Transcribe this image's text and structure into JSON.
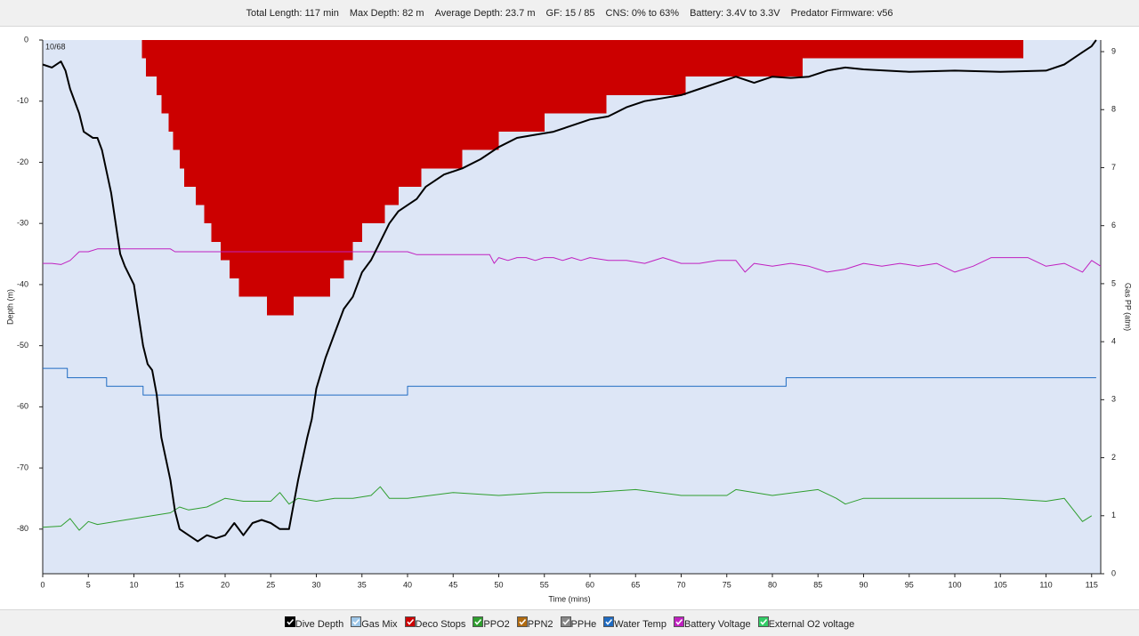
{
  "header": {
    "stats": [
      "Total Length: 117 min",
      "Max Depth: 82 m",
      "Average Depth: 23.7 m",
      "GF: 15 / 85",
      "CNS: 0% to 63%",
      "Battery: 3.4V to 3.3V",
      "Predator Firmware: v56"
    ]
  },
  "chart_data": {
    "type": "line",
    "annotation": "10/68",
    "x_label": "Time (mins)",
    "y_label": "Depth (m)",
    "y2_label": "Gas PP (atm)",
    "xlim": [
      0,
      116
    ],
    "ylim": [
      -87.3,
      0
    ],
    "y2lim": [
      0,
      9.2
    ],
    "xticks": [
      0,
      5,
      10,
      15,
      20,
      25,
      30,
      35,
      40,
      45,
      50,
      55,
      60,
      65,
      70,
      75,
      80,
      85,
      90,
      95,
      100,
      105,
      110,
      115
    ],
    "yticks": [
      0,
      -10,
      -20,
      -30,
      -40,
      -50,
      -60,
      -70,
      -80
    ],
    "y2ticks": [
      0,
      1,
      2,
      3,
      4,
      5,
      6,
      7,
      8,
      9
    ],
    "plot_background": "#dde6f6",
    "series": [
      {
        "name": "Deco Stops",
        "color": "#cc0000",
        "mark": "step-area",
        "x": [
          10.9,
          11.3,
          12.5,
          13,
          13.8,
          14.3,
          15,
          15.5,
          16.8,
          17.7,
          18.5,
          19.5,
          20.5,
          21.5,
          24.6,
          27.5,
          31.5,
          33,
          34,
          35,
          37.5,
          39,
          41.5,
          46,
          50,
          55,
          61.8,
          70.5,
          83.3,
          107.5
        ],
        "values": [
          -3,
          -6,
          -9,
          -12,
          -15,
          -18,
          -21,
          -24,
          -27,
          -30,
          -33,
          -36,
          -39,
          -42,
          -45,
          -42,
          -39,
          -36,
          -33,
          -30,
          -27,
          -24,
          -21,
          -18,
          -15,
          -12,
          -9,
          -6,
          -3,
          0
        ]
      },
      {
        "name": "Water Temp",
        "color": "#1f6bc2",
        "axis": "y2",
        "mark": "line",
        "x": [
          0,
          2.7,
          2.7,
          7,
          7,
          11,
          11,
          40,
          40,
          81.5,
          81.5,
          115.5
        ],
        "values": [
          3.54,
          3.54,
          3.38,
          3.38,
          3.23,
          3.23,
          3.08,
          3.08,
          3.23,
          3.23,
          3.38,
          3.38
        ]
      },
      {
        "name": "Battery Voltage",
        "color": "#c020c0",
        "axis": "y2",
        "mark": "line",
        "x": [
          0,
          1,
          2,
          3,
          4,
          5,
          6,
          7,
          10,
          14,
          14.5,
          20,
          30,
          39,
          40,
          41,
          42,
          49,
          49.5,
          50,
          51,
          52,
          53,
          54,
          55,
          56,
          57,
          58,
          59,
          60,
          62,
          64,
          66,
          68,
          70,
          72,
          74,
          76,
          77,
          78,
          80,
          82,
          84,
          86,
          88,
          90,
          92,
          94,
          96,
          98,
          100,
          102,
          104,
          106,
          107,
          108,
          110,
          112,
          114,
          115,
          116
        ],
        "values": [
          5.35,
          5.35,
          5.33,
          5.4,
          5.55,
          5.55,
          5.6,
          5.6,
          5.6,
          5.6,
          5.55,
          5.55,
          5.55,
          5.55,
          5.55,
          5.5,
          5.5,
          5.5,
          5.35,
          5.45,
          5.4,
          5.45,
          5.45,
          5.4,
          5.45,
          5.45,
          5.4,
          5.45,
          5.4,
          5.45,
          5.4,
          5.4,
          5.35,
          5.45,
          5.35,
          5.35,
          5.4,
          5.4,
          5.2,
          5.35,
          5.3,
          5.35,
          5.3,
          5.2,
          5.25,
          5.35,
          5.3,
          5.35,
          5.3,
          5.35,
          5.2,
          5.3,
          5.45,
          5.45,
          5.45,
          5.45,
          5.3,
          5.35,
          5.2,
          5.4,
          5.3
        ]
      },
      {
        "name": "PPO2",
        "color": "#2e9e2e",
        "axis": "y2",
        "mark": "line",
        "x": [
          0,
          2,
          3,
          4,
          5,
          6,
          8,
          10,
          12,
          14,
          15,
          16,
          18,
          20,
          22,
          25,
          26,
          27,
          28,
          30,
          32,
          34,
          36,
          37,
          38,
          40,
          45,
          50,
          55,
          60,
          65,
          70,
          75,
          76,
          80,
          85,
          87,
          88,
          90,
          95,
          100,
          105,
          110,
          112,
          113,
          114,
          115
        ],
        "values": [
          0.8,
          0.82,
          0.95,
          0.75,
          0.9,
          0.85,
          0.9,
          0.95,
          1.0,
          1.05,
          1.15,
          1.1,
          1.15,
          1.3,
          1.25,
          1.25,
          1.4,
          1.2,
          1.3,
          1.25,
          1.3,
          1.3,
          1.35,
          1.5,
          1.3,
          1.3,
          1.4,
          1.35,
          1.4,
          1.4,
          1.45,
          1.35,
          1.35,
          1.45,
          1.35,
          1.45,
          1.3,
          1.2,
          1.3,
          1.3,
          1.3,
          1.3,
          1.25,
          1.3,
          1.1,
          0.9,
          1.0
        ]
      },
      {
        "name": "Dive Depth",
        "color": "#000000",
        "mark": "line",
        "x": [
          0,
          1,
          2,
          2.5,
          3,
          4,
          4.5,
          5.5,
          6,
          6.5,
          7.5,
          8,
          8.5,
          9,
          10,
          10.5,
          11,
          11.5,
          12,
          12.5,
          13,
          14,
          14.5,
          15,
          16,
          17,
          18,
          19,
          20,
          21,
          22,
          23,
          24,
          25,
          26,
          27,
          28,
          29,
          29.5,
          30,
          31,
          32,
          33,
          34,
          35,
          36,
          37,
          38,
          39,
          40,
          41,
          42,
          43,
          44,
          46,
          48,
          50,
          52,
          54,
          56,
          58,
          60,
          62,
          64,
          66,
          68,
          70,
          72,
          74,
          76,
          78,
          80,
          82,
          84,
          86,
          88,
          90,
          95,
          100,
          105,
          110,
          112,
          113,
          114,
          115,
          115.5
        ],
        "values": [
          -4,
          -4.5,
          -3.5,
          -5,
          -8,
          -12,
          -15,
          -16,
          -16,
          -18,
          -25,
          -30,
          -35,
          -37,
          -40,
          -45,
          -50,
          -53,
          -54,
          -58,
          -65,
          -72,
          -77,
          -80,
          -81,
          -82,
          -81,
          -81.5,
          -81,
          -79,
          -81,
          -79,
          -78.5,
          -79,
          -80,
          -80,
          -72,
          -65,
          -62,
          -57,
          -52,
          -48,
          -44,
          -42,
          -38,
          -36,
          -33,
          -30,
          -28,
          -27,
          -26,
          -24,
          -23,
          -22,
          -21,
          -19.5,
          -17.5,
          -16,
          -15.5,
          -15,
          -14,
          -13,
          -12.5,
          -11,
          -10,
          -9.5,
          -9,
          -8,
          -7,
          -6,
          -7,
          -6,
          -6.2,
          -6,
          -5,
          -4.5,
          -4.8,
          -5.2,
          -5,
          -5.2,
          -5,
          -4,
          -3,
          -2,
          -1,
          0
        ]
      },
      {
        "name": "Gas Mix",
        "color": "#9ec7e8"
      },
      {
        "name": "PPN2",
        "color": "#b06a10"
      },
      {
        "name": "PPHe",
        "color": "#888888"
      },
      {
        "name": "External O2 voltage",
        "color": "#33cc66"
      }
    ],
    "legend_order": [
      4,
      5,
      0,
      3,
      6,
      7,
      1,
      2,
      8
    ]
  }
}
